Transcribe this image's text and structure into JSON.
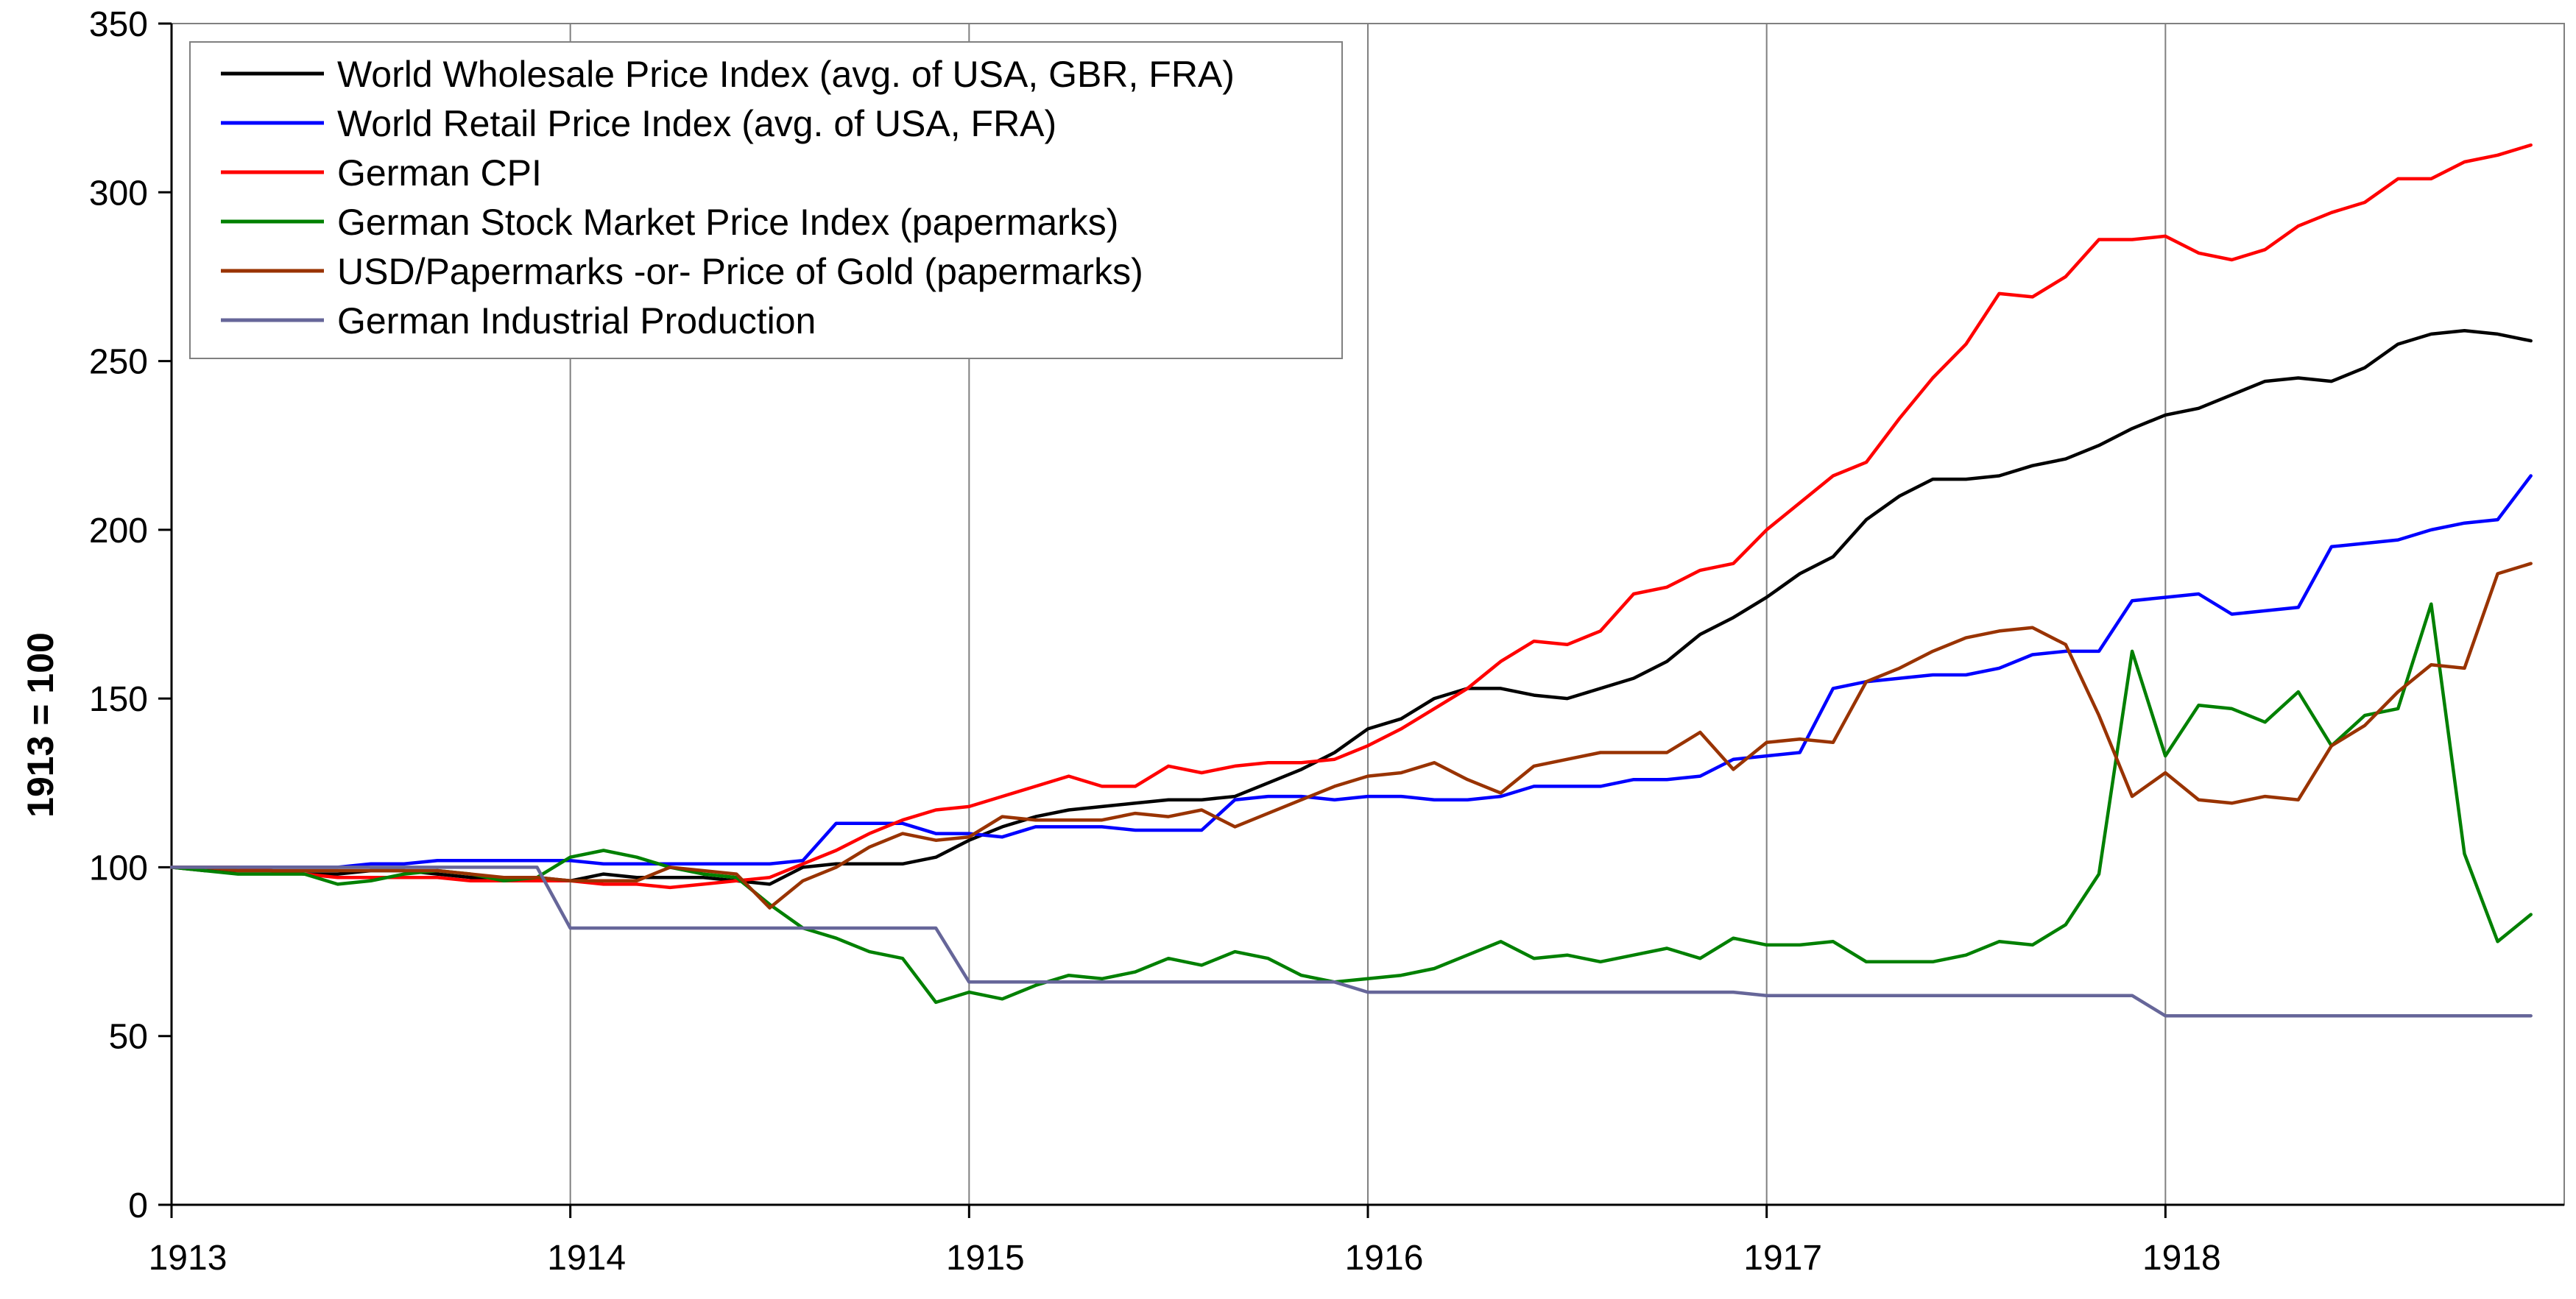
{
  "chart_data": {
    "type": "line",
    "title": "",
    "xlabel": "",
    "ylabel": "1913 = 100",
    "xlim": [
      1913,
      1919
    ],
    "ylim": [
      0,
      350
    ],
    "x_ticks": [
      "1913",
      "1914",
      "1915",
      "1916",
      "1917",
      "1918"
    ],
    "y_ticks": [
      "0",
      "50",
      "100",
      "150",
      "200",
      "250",
      "300",
      "350"
    ],
    "grid": "vertical",
    "legend_position": "top-left",
    "x_step": 0.08333,
    "x_start": 1913,
    "series": [
      {
        "name": "World Wholesale Price Index (avg. of USA, GBR, FRA)",
        "color": "#000000",
        "values": [
          100,
          99,
          99,
          99,
          98,
          98,
          99,
          99,
          98,
          97,
          97,
          97,
          96,
          98,
          97,
          97,
          97,
          96,
          95,
          100,
          101,
          101,
          101,
          103,
          108,
          112,
          115,
          117,
          118,
          119,
          120,
          120,
          121,
          125,
          129,
          134,
          141,
          144,
          150,
          153,
          153,
          151,
          150,
          153,
          156,
          161,
          169,
          174,
          180,
          187,
          192,
          203,
          210,
          215,
          215,
          216,
          219,
          221,
          225,
          230,
          234,
          236,
          240,
          244,
          245,
          244,
          248,
          255,
          258,
          259,
          258,
          256
        ]
      },
      {
        "name": "World Retail Price Index (avg. of USA, FRA)",
        "color": "#0000ff",
        "values": [
          100,
          100,
          100,
          100,
          100,
          100,
          101,
          101,
          102,
          102,
          102,
          102,
          102,
          101,
          101,
          101,
          101,
          101,
          101,
          102,
          113,
          113,
          113,
          110,
          110,
          109,
          112,
          112,
          112,
          111,
          111,
          111,
          120,
          121,
          121,
          120,
          121,
          121,
          120,
          120,
          121,
          124,
          124,
          124,
          126,
          126,
          127,
          132,
          133,
          134,
          153,
          155,
          156,
          157,
          157,
          159,
          163,
          164,
          164,
          179,
          180,
          181,
          175,
          176,
          177,
          195,
          196,
          197,
          200,
          202,
          203,
          216
        ]
      },
      {
        "name": "German CPI",
        "color": "#ff0000",
        "values": [
          100,
          100,
          100,
          99,
          98,
          97,
          97,
          97,
          97,
          96,
          96,
          96,
          96,
          95,
          95,
          94,
          95,
          96,
          97,
          101,
          105,
          110,
          114,
          117,
          118,
          121,
          124,
          127,
          124,
          124,
          130,
          128,
          130,
          131,
          131,
          132,
          136,
          141,
          147,
          153,
          161,
          167,
          166,
          170,
          181,
          183,
          188,
          190,
          200,
          208,
          216,
          220,
          233,
          245,
          255,
          270,
          269,
          275,
          286,
          286,
          287,
          282,
          280,
          283,
          290,
          294,
          297,
          304,
          304,
          309,
          311,
          314
        ]
      },
      {
        "name": "German Stock Market Price Index (papermarks)",
        "color": "#008000",
        "values": [
          100,
          99,
          98,
          98,
          98,
          95,
          96,
          98,
          99,
          98,
          96,
          97,
          103,
          105,
          103,
          100,
          98,
          97,
          89,
          82,
          79,
          75,
          73,
          60,
          63,
          61,
          65,
          68,
          67,
          69,
          73,
          71,
          75,
          73,
          68,
          66,
          67,
          68,
          70,
          74,
          78,
          73,
          74,
          72,
          74,
          76,
          73,
          79,
          77,
          77,
          78,
          72,
          72,
          72,
          74,
          78,
          77,
          83,
          98,
          164,
          133,
          148,
          147,
          143,
          152,
          136,
          145,
          147,
          178,
          104,
          78,
          86
        ]
      },
      {
        "name": "USD/Papermarks -or- Price of Gold (papermarks)",
        "color": "#993300",
        "values": [
          100,
          100,
          99,
          99,
          99,
          99,
          99,
          99,
          99,
          98,
          97,
          97,
          96,
          96,
          96,
          100,
          99,
          98,
          88,
          96,
          100,
          106,
          110,
          108,
          109,
          115,
          114,
          114,
          114,
          116,
          115,
          117,
          112,
          116,
          120,
          124,
          127,
          128,
          131,
          126,
          122,
          130,
          132,
          134,
          134,
          134,
          140,
          129,
          137,
          138,
          137,
          155,
          159,
          164,
          168,
          170,
          171,
          166,
          145,
          121,
          128,
          120,
          119,
          121,
          120,
          136,
          142,
          152,
          160,
          159,
          187,
          190
        ]
      },
      {
        "name": "German Industrial Production",
        "color": "#666699",
        "values": [
          100,
          100,
          100,
          100,
          100,
          100,
          100,
          100,
          100,
          100,
          100,
          100,
          82,
          82,
          82,
          82,
          82,
          82,
          82,
          82,
          82,
          82,
          82,
          82,
          66,
          66,
          66,
          66,
          66,
          66,
          66,
          66,
          66,
          66,
          66,
          66,
          63,
          63,
          63,
          63,
          63,
          63,
          63,
          63,
          63,
          63,
          63,
          63,
          62,
          62,
          62,
          62,
          62,
          62,
          62,
          62,
          62,
          62,
          62,
          62,
          56,
          56,
          56,
          56,
          56,
          56,
          56,
          56,
          56,
          56,
          56,
          56
        ]
      }
    ]
  }
}
